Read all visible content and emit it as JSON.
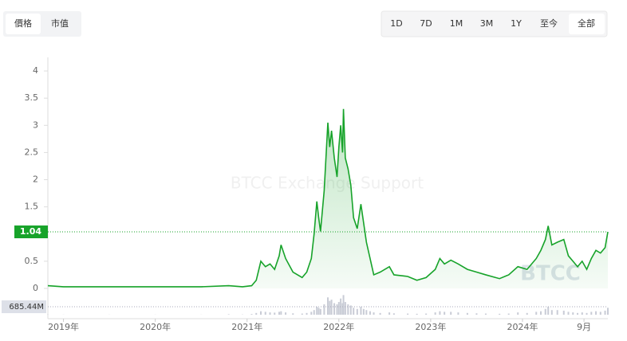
{
  "tabs": [
    "價格",
    "市值"
  ],
  "ranges": [
    "1D",
    "7D",
    "1M",
    "3M",
    "1Y",
    "至今",
    "全部"
  ],
  "chart_data": {
    "type": "line",
    "color": "#17a32a",
    "watermark": "BTCC Exchange Support",
    "logo": "BTCC",
    "x": [
      2018.83,
      2019.0,
      2019.5,
      2020.0,
      2020.5,
      2020.8,
      2020.95,
      2021.05,
      2021.1,
      2021.15,
      2021.2,
      2021.25,
      2021.3,
      2021.35,
      2021.37,
      2021.42,
      2021.5,
      2021.6,
      2021.65,
      2021.7,
      2021.73,
      2021.76,
      2021.78,
      2021.8,
      2021.84,
      2021.88,
      2021.9,
      2021.92,
      2021.95,
      2021.98,
      2022.0,
      2022.02,
      2022.04,
      2022.05,
      2022.07,
      2022.1,
      2022.13,
      2022.16,
      2022.2,
      2022.24,
      2022.27,
      2022.3,
      2022.34,
      2022.38,
      2022.45,
      2022.55,
      2022.6,
      2022.75,
      2022.85,
      2022.95,
      2023.05,
      2023.1,
      2023.15,
      2023.22,
      2023.3,
      2023.4,
      2023.5,
      2023.6,
      2023.75,
      2023.85,
      2023.95,
      2024.05,
      2024.15,
      2024.2,
      2024.25,
      2024.28,
      2024.32,
      2024.38,
      2024.45,
      2024.5,
      2024.55,
      2024.6,
      2024.65,
      2024.7,
      2024.75,
      2024.8,
      2024.85,
      2024.9,
      2024.93
    ],
    "values": [
      0.05,
      0.03,
      0.03,
      0.03,
      0.03,
      0.05,
      0.03,
      0.05,
      0.15,
      0.5,
      0.4,
      0.45,
      0.35,
      0.6,
      0.8,
      0.55,
      0.3,
      0.2,
      0.3,
      0.55,
      1.0,
      1.6,
      1.3,
      1.05,
      1.8,
      3.05,
      2.6,
      2.9,
      2.4,
      2.05,
      2.6,
      3.0,
      2.5,
      3.3,
      2.4,
      2.2,
      1.9,
      1.3,
      1.1,
      1.55,
      1.2,
      0.85,
      0.55,
      0.25,
      0.3,
      0.4,
      0.25,
      0.22,
      0.15,
      0.2,
      0.35,
      0.55,
      0.45,
      0.52,
      0.45,
      0.35,
      0.3,
      0.25,
      0.18,
      0.25,
      0.4,
      0.35,
      0.55,
      0.7,
      0.9,
      1.15,
      0.8,
      0.85,
      0.9,
      0.6,
      0.5,
      0.4,
      0.5,
      0.35,
      0.55,
      0.7,
      0.65,
      0.75,
      1.04
    ],
    "current_value": 1.04,
    "xlim": [
      2018.83,
      2024.93
    ],
    "xticks": [
      {
        "value": 2019,
        "label": "2019年"
      },
      {
        "value": 2020,
        "label": "2020年"
      },
      {
        "value": 2021,
        "label": "2021年"
      },
      {
        "value": 2022,
        "label": "2022年"
      },
      {
        "value": 2023,
        "label": "2023年"
      },
      {
        "value": 2024,
        "label": "2024年"
      },
      {
        "value": 2024.67,
        "label": "9月"
      }
    ],
    "ylim": [
      0,
      4.25
    ],
    "yticks": [
      0,
      0.5,
      1,
      1.5,
      2,
      2.5,
      3,
      3.5,
      4
    ],
    "volume": {
      "color": "#c9ccd6",
      "ylim": [
        0,
        2000
      ],
      "yticks": [
        {
          "value": 685.44,
          "label": "685.44M"
        }
      ],
      "values": [
        20,
        10,
        10,
        10,
        10,
        40,
        20,
        60,
        150,
        300,
        250,
        200,
        180,
        250,
        300,
        200,
        120,
        100,
        150,
        250,
        400,
        700,
        600,
        500,
        900,
        1500,
        1200,
        1300,
        1000,
        900,
        1100,
        1400,
        1000,
        1700,
        1100,
        900,
        800,
        600,
        500,
        700,
        500,
        400,
        300,
        200,
        150,
        200,
        120,
        100,
        80,
        100,
        200,
        300,
        250,
        250,
        200,
        150,
        120,
        100,
        80,
        100,
        200,
        150,
        250,
        300,
        500,
        700,
        400,
        400,
        350,
        250,
        200,
        150,
        200,
        150,
        250,
        300,
        250,
        350,
        600
      ]
    }
  }
}
